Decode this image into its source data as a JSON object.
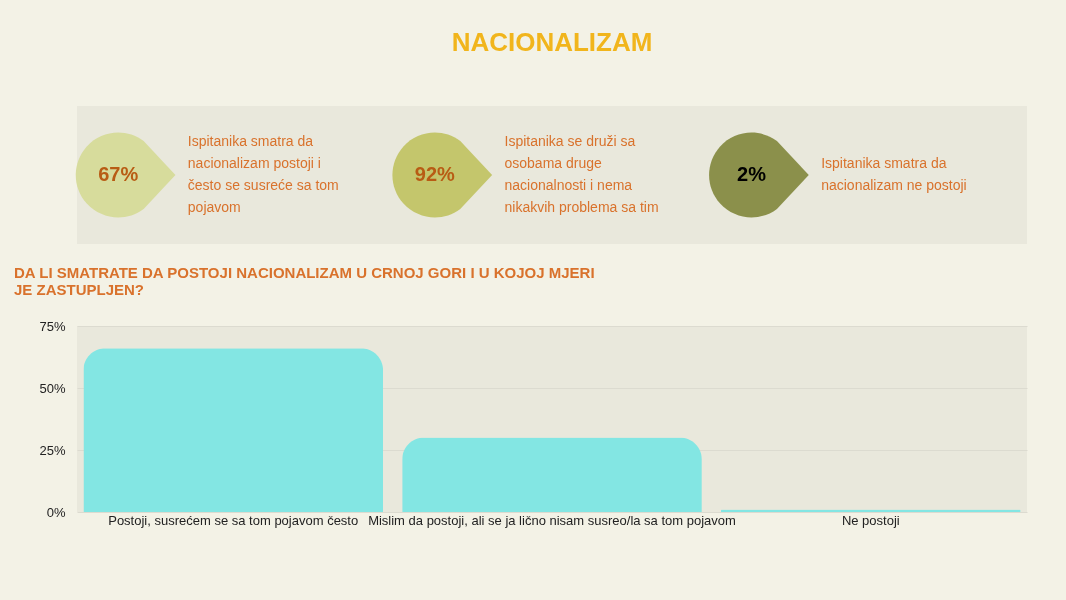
{
  "chart_data": [
    {
      "type": "other",
      "title": "NACIONALIZAM",
      "categories": [
        null,
        null,
        null
      ],
      "annotations": [
        "Ispitanika smatra da nacionalizam postoji i često se susreće sa tom pojavom",
        "Ispitanika se druži sa osobama druge nacionalnosti i nema nikakvih problema sa tim",
        "Ispitanika smatra da nacionalizam ne postoji"
      ],
      "values": [
        67,
        92,
        2
      ],
      "value_labels": [
        "67%",
        "92%",
        "2%"
      ],
      "colors": [
        "#d7dc9c",
        "#c4c66c",
        "#8b904b"
      ]
    },
    {
      "type": "bar",
      "title": "DA LI SMATRATE DA POSTOJI NACIONALIZAM U CRNOJ GORI I U KOJOJ MJERI JE ZASTUPLJEN?",
      "categories": [
        "Postoji, susrećem se sa tom pojavom često",
        "Mislim da postoji, ali se ja lično nisam susreo/la sa tom pojavom",
        "Ne postoji"
      ],
      "values": [
        66,
        30,
        1
      ],
      "color": "#83e6e3",
      "ylim": [
        0,
        75
      ],
      "yticks": [
        {
          "value": 0,
          "label": "0%"
        },
        {
          "value": 25,
          "label": "25%"
        },
        {
          "value": 50,
          "label": "50%"
        },
        {
          "value": 75,
          "label": "75%"
        }
      ],
      "grid": "y"
    }
  ]
}
